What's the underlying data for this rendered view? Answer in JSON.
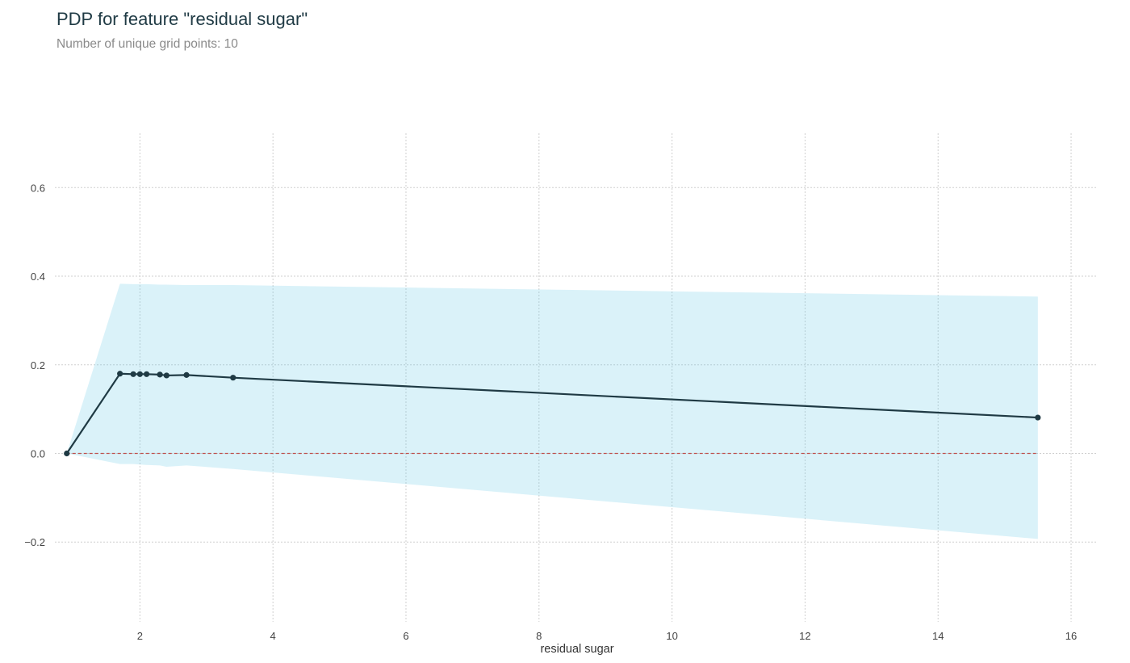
{
  "header": {
    "title": "PDP for feature \"residual sugar\"",
    "subtitle": "Number of unique grid points: 10"
  },
  "colors": {
    "line": "#1f3a44",
    "band": "#66c9e6",
    "baseline": "#c0504d",
    "grid": "#cfcfcf"
  },
  "chart_data": {
    "type": "line",
    "title": "PDP for feature \"residual sugar\"",
    "subtitle": "Number of unique grid points: 10",
    "xlabel": "residual sugar",
    "ylabel": "",
    "xlim": [
      0.6,
      16.4
    ],
    "ylim": [
      -0.38,
      0.75
    ],
    "xticks": [
      2,
      4,
      6,
      8,
      10,
      12,
      14,
      16
    ],
    "yticks": [
      -0.2,
      0.0,
      0.2,
      0.4,
      0.6
    ],
    "ytick_labels": [
      "−0.2",
      "0.0",
      "0.2",
      "0.4",
      "0.6"
    ],
    "grid": true,
    "x": [
      0.9,
      1.7,
      1.9,
      2.0,
      2.1,
      2.3,
      2.4,
      2.7,
      3.4,
      15.5
    ],
    "y": [
      0.0,
      0.18,
      0.179,
      0.179,
      0.179,
      0.178,
      0.176,
      0.177,
      0.171,
      0.081
    ],
    "band_upper": [
      0.0,
      0.383,
      0.382,
      0.382,
      0.382,
      0.381,
      0.381,
      0.38,
      0.38,
      0.354
    ],
    "band_lower": [
      0.0,
      -0.024,
      -0.024,
      -0.025,
      -0.026,
      -0.027,
      -0.03,
      -0.027,
      -0.035,
      -0.193
    ],
    "baseline": 0.0
  }
}
